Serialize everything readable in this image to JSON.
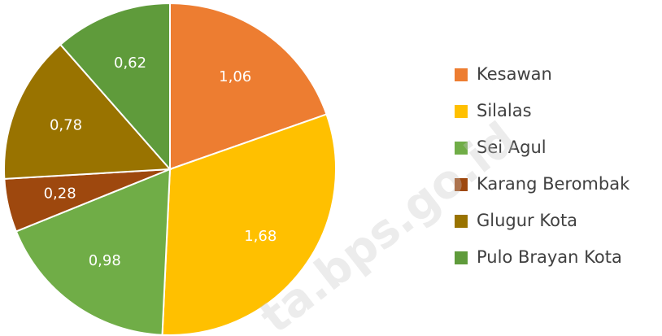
{
  "chart_data": {
    "type": "pie",
    "categories": [
      "Kesawan",
      "Silalas",
      "Sei Agul",
      "Karang Berombak",
      "Glugur Kota",
      "Pulo Brayan Kota"
    ],
    "values": [
      1.06,
      1.68,
      0.98,
      0.28,
      0.78,
      0.62
    ],
    "value_labels": [
      "1,06",
      "1,68",
      "0,98",
      "0,28",
      "0,78",
      "0,62"
    ],
    "colors": [
      "#ed7d31",
      "#ffc000",
      "#70ad47",
      "#9e480e",
      "#997300",
      "#5f9b3b"
    ],
    "watermark": "ta.bps.go.id"
  }
}
